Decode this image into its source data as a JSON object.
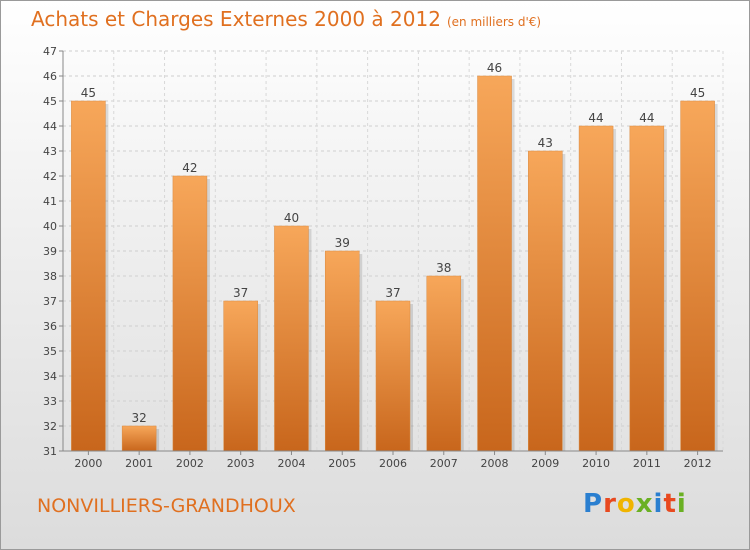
{
  "title": "Achats et Charges Externes 2000 à 2012",
  "subtitle": "(en milliers d'€)",
  "location": "NONVILLIERS-GRANDHOUX",
  "logo": {
    "letters": [
      "P",
      "r",
      "o",
      "x",
      "i",
      "t",
      "i"
    ],
    "colors": [
      "#2a7fd0",
      "#e8491f",
      "#f0b400",
      "#6ab023",
      "#2a7fd0",
      "#e8491f",
      "#6ab023"
    ]
  },
  "colors": {
    "accent": "#e07020",
    "bar_top": "#f7a75a",
    "bar_bottom": "#c8661c"
  },
  "chart_data": {
    "type": "bar",
    "categories": [
      "2000",
      "2001",
      "2002",
      "2003",
      "2004",
      "2005",
      "2006",
      "2007",
      "2008",
      "2009",
      "2010",
      "2011",
      "2012"
    ],
    "values": [
      45,
      32,
      42,
      37,
      40,
      39,
      37,
      38,
      46,
      43,
      44,
      44,
      45
    ],
    "ylim": [
      31,
      47
    ],
    "yticks": [
      31,
      32,
      33,
      34,
      35,
      36,
      37,
      38,
      39,
      40,
      41,
      42,
      43,
      44,
      45,
      46,
      47
    ],
    "grid": true,
    "data_labels": [
      "45",
      "32",
      "42",
      "37",
      "40",
      "39",
      "37",
      "38",
      "46",
      "43",
      "44",
      "44",
      "45"
    ]
  }
}
